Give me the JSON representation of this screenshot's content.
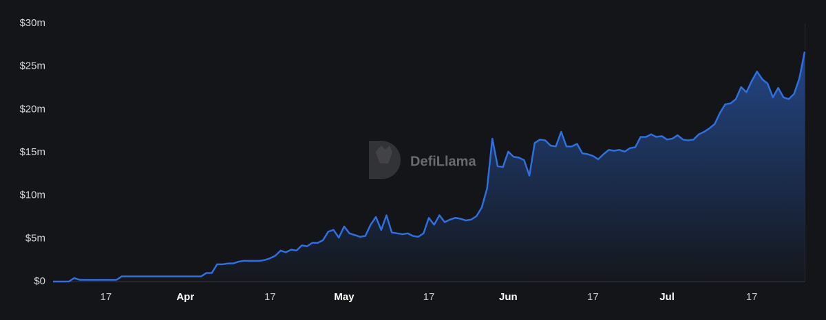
{
  "chart_data": {
    "type": "area",
    "watermark": "DefiLlama",
    "color": "#2f6fe0",
    "categories": [
      null,
      null,
      null,
      null,
      null,
      null,
      null,
      null,
      null,
      null,
      "17",
      null,
      null,
      null,
      null,
      null,
      null,
      null,
      null,
      null,
      null,
      null,
      null,
      null,
      null,
      "Apr",
      null,
      null,
      null,
      null,
      null,
      null,
      null,
      null,
      null,
      null,
      null,
      null,
      null,
      null,
      null,
      "17",
      null,
      null,
      null,
      null,
      null,
      null,
      null,
      null,
      null,
      null,
      null,
      null,
      null,
      "May",
      null,
      null,
      null,
      null,
      null,
      null,
      null,
      null,
      null,
      null,
      null,
      null,
      null,
      null,
      null,
      "17",
      null,
      null,
      null,
      null,
      null,
      null,
      null,
      null,
      null,
      null,
      null,
      null,
      null,
      null,
      "Jun",
      null,
      null,
      null,
      null,
      null,
      null,
      null,
      null,
      null,
      null,
      null,
      null,
      null,
      null,
      null,
      "17",
      null,
      null,
      null,
      null,
      null,
      null,
      null,
      null,
      null,
      null,
      null,
      null,
      null,
      "Jul",
      null,
      null,
      null,
      null,
      null,
      null,
      null,
      null,
      null,
      null,
      null,
      null,
      null,
      null,
      null,
      "17",
      null,
      null,
      null,
      null,
      null,
      null,
      null,
      null,
      null,
      null
    ],
    "values": [
      0,
      0,
      0,
      0,
      0.4,
      0.2,
      0.2,
      0.2,
      0.2,
      0.2,
      0.2,
      0.2,
      0.2,
      0.6,
      0.6,
      0.6,
      0.6,
      0.6,
      0.6,
      0.6,
      0.6,
      0.6,
      0.6,
      0.6,
      0.6,
      0.6,
      0.6,
      0.6,
      0.6,
      1.0,
      1.0,
      2.0,
      2.0,
      2.1,
      2.1,
      2.3,
      2.4,
      2.4,
      2.4,
      2.4,
      2.5,
      2.7,
      3.0,
      3.6,
      3.4,
      3.7,
      3.6,
      4.2,
      4.1,
      4.5,
      4.5,
      4.8,
      5.8,
      6.0,
      5.1,
      6.4,
      5.6,
      5.4,
      5.2,
      5.3,
      6.6,
      7.5,
      6.0,
      7.7,
      5.7,
      5.6,
      5.5,
      5.6,
      5.3,
      5.2,
      5.6,
      7.4,
      6.6,
      7.7,
      6.9,
      7.2,
      7.4,
      7.3,
      7.1,
      7.2,
      7.6,
      8.6,
      10.8,
      16.6,
      13.4,
      13.3,
      15.1,
      14.5,
      14.4,
      14.1,
      12.3,
      16.1,
      16.5,
      16.4,
      15.8,
      15.7,
      17.4,
      15.7,
      15.7,
      16.0,
      14.9,
      14.8,
      14.6,
      14.2,
      14.8,
      15.3,
      15.2,
      15.3,
      15.1,
      15.5,
      15.6,
      16.8,
      16.8,
      17.1,
      16.8,
      16.9,
      16.5,
      16.6,
      17.0,
      16.5,
      16.4,
      16.5,
      17.1,
      17.4,
      17.8,
      18.3,
      19.6,
      20.6,
      20.7,
      21.2,
      22.6,
      22.0,
      23.3,
      24.4,
      23.5,
      23.0,
      21.4,
      22.5,
      21.4,
      21.2,
      21.8,
      23.6,
      26.7
    ],
    "ylim": [
      0,
      30
    ],
    "yticks": [
      {
        "value": 0,
        "label": "$0"
      },
      {
        "value": 5,
        "label": "$5m"
      },
      {
        "value": 10,
        "label": "$10m"
      },
      {
        "value": 15,
        "label": "$15m"
      },
      {
        "value": 20,
        "label": "$20m"
      },
      {
        "value": 25,
        "label": "$25m"
      },
      {
        "value": 30,
        "label": "$30m"
      }
    ],
    "grid": false
  }
}
